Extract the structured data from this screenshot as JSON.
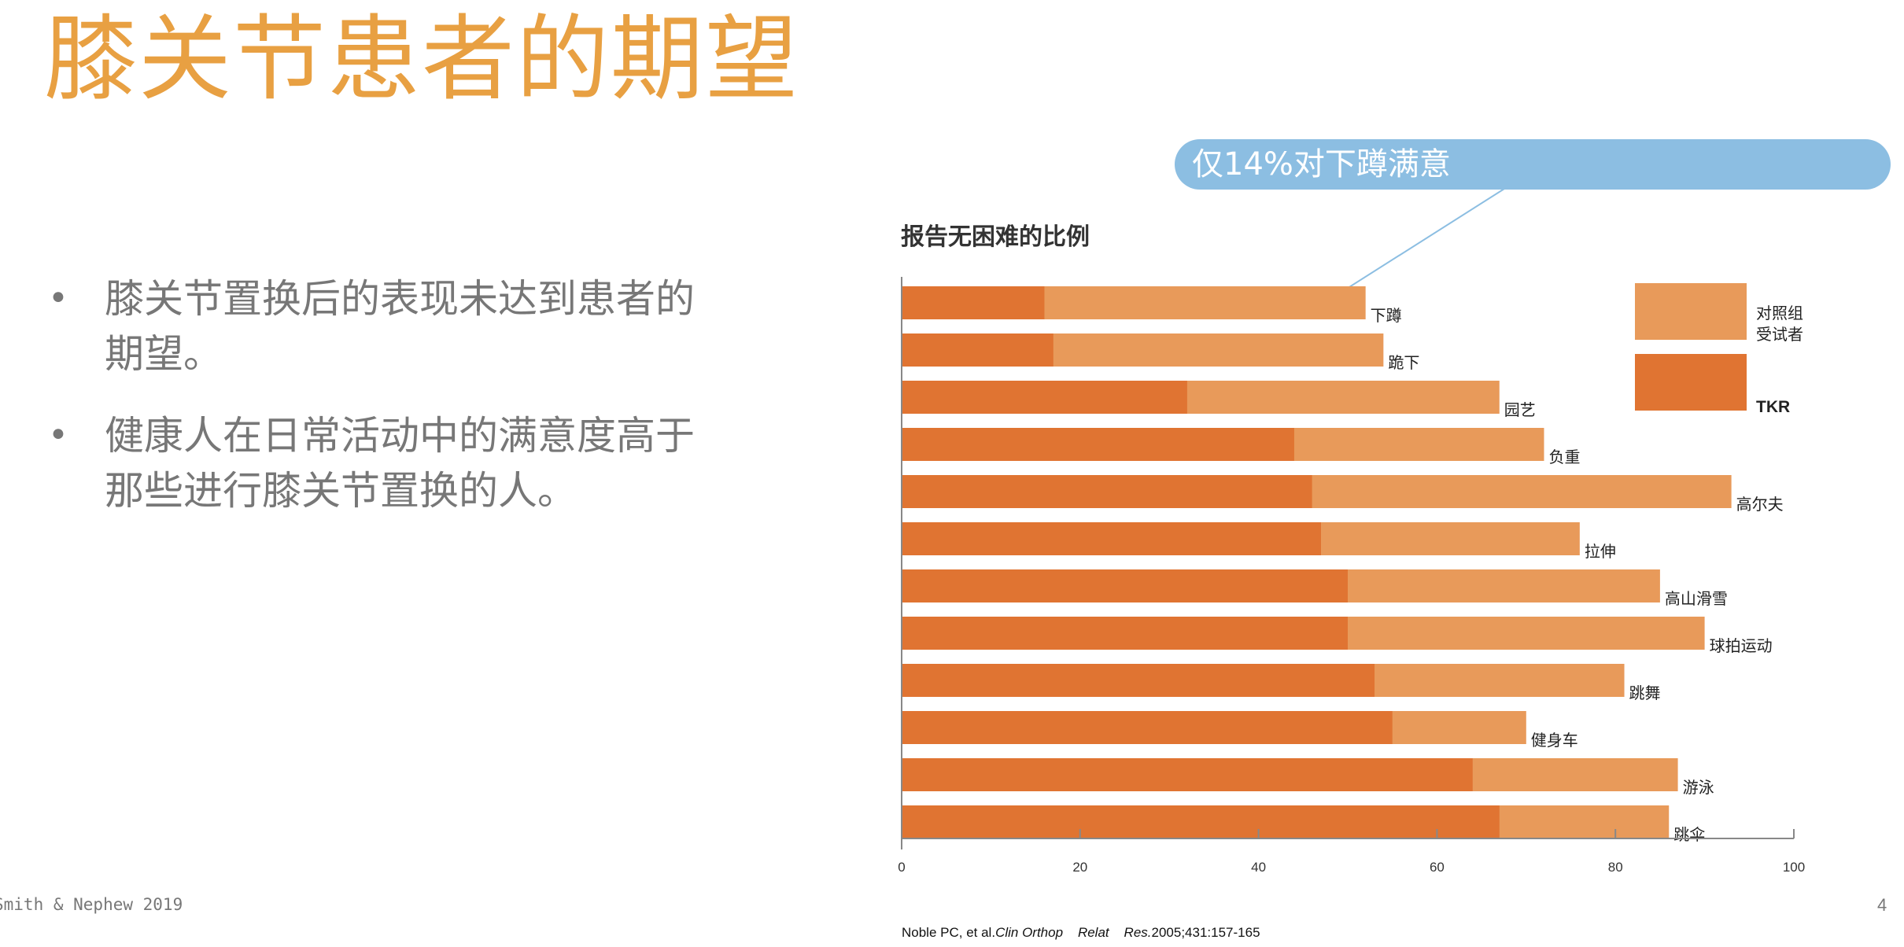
{
  "slide": {
    "title": "膝关节患者的期望",
    "bullets": [
      "膝关节置换后的表现未达到患者的期望。",
      "健康人在日常活动中的满意度高于那些进行膝关节置换的人。"
    ],
    "footer_left": "Smith & Nephew 2019",
    "page_number": "4",
    "citation": {
      "authors": "Noble PC, et al.",
      "journal_1": "Clin Orthop",
      "journal_2": "Relat",
      "journal_3": "Res.",
      "details": "2005;431:157-165"
    }
  },
  "callout": {
    "text": "仅14%对下蹲满意",
    "color": "#8CBEE2"
  },
  "colors": {
    "title": "#E8A042",
    "control": "#E89A5A",
    "tkr": "#E07432"
  },
  "chart_data": {
    "type": "bar",
    "orientation": "horizontal",
    "title": "报告无困难的比例",
    "xlim": [
      0,
      100
    ],
    "x_ticks": [
      0,
      20,
      40,
      60,
      80,
      100
    ],
    "categories": [
      "下蹲",
      "跪下",
      "园艺",
      "负重",
      "高尔夫",
      "拉伸",
      "高山滑雪",
      "球拍运动",
      "跳舞",
      "健身车",
      "游泳",
      "跳伞"
    ],
    "series": [
      {
        "name": "对照组受试者",
        "color": "#E89A5A",
        "values": [
          52,
          54,
          67,
          72,
          93,
          76,
          85,
          90,
          81,
          70,
          87,
          86
        ]
      },
      {
        "name": "TKR",
        "color": "#E07432",
        "values": [
          16,
          17,
          32,
          44,
          46,
          47,
          50,
          50,
          53,
          55,
          64,
          67
        ]
      }
    ],
    "legend": {
      "position": "top-right",
      "labels": [
        "对照组",
        "受试者",
        "TKR"
      ]
    }
  }
}
